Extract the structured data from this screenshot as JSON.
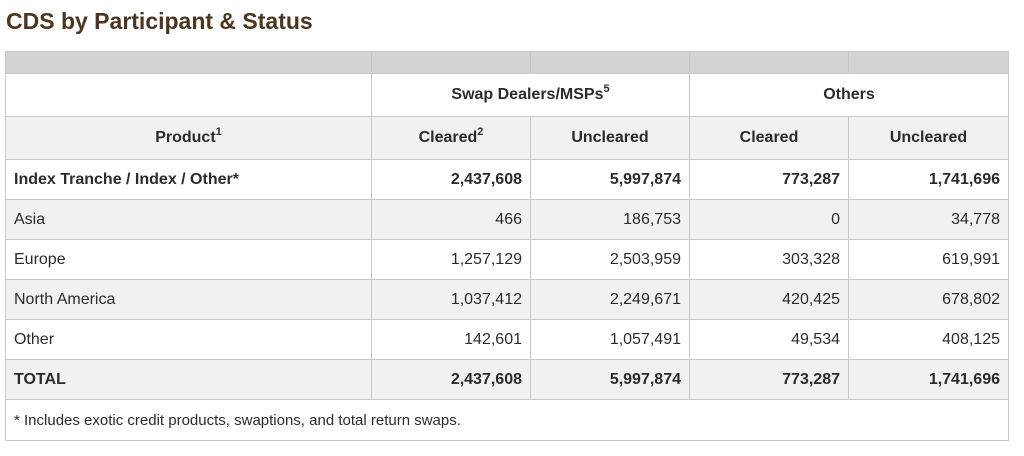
{
  "title": "CDS by Participant & Status",
  "header": {
    "groups": [
      {
        "label": "Swap Dealers/MSPs",
        "sup": "5"
      },
      {
        "label": "Others",
        "sup": ""
      }
    ],
    "product_label": "Product",
    "product_sup": "1",
    "columns": [
      {
        "label": "Cleared",
        "sup": "2"
      },
      {
        "label": "Uncleared",
        "sup": ""
      },
      {
        "label": "Cleared",
        "sup": ""
      },
      {
        "label": "Uncleared",
        "sup": ""
      }
    ]
  },
  "rows": [
    {
      "product": "Index Tranche / Index / Other*",
      "values": [
        "2,437,608",
        "5,997,874",
        "773,287",
        "1,741,696"
      ],
      "bold": true
    },
    {
      "product": "Asia",
      "values": [
        "466",
        "186,753",
        "0",
        "34,778"
      ],
      "bold": false
    },
    {
      "product": "Europe",
      "values": [
        "1,257,129",
        "2,503,959",
        "303,328",
        "619,991"
      ],
      "bold": false
    },
    {
      "product": "North America",
      "values": [
        "1,037,412",
        "2,249,671",
        "420,425",
        "678,802"
      ],
      "bold": false
    },
    {
      "product": "Other",
      "values": [
        "142,601",
        "1,057,491",
        "49,534",
        "408,125"
      ],
      "bold": false
    },
    {
      "product": "TOTAL",
      "values": [
        "2,437,608",
        "5,997,874",
        "773,287",
        "1,741,696"
      ],
      "bold": true
    }
  ],
  "footnote": "* Includes exotic credit products, swaptions, and total return swaps."
}
